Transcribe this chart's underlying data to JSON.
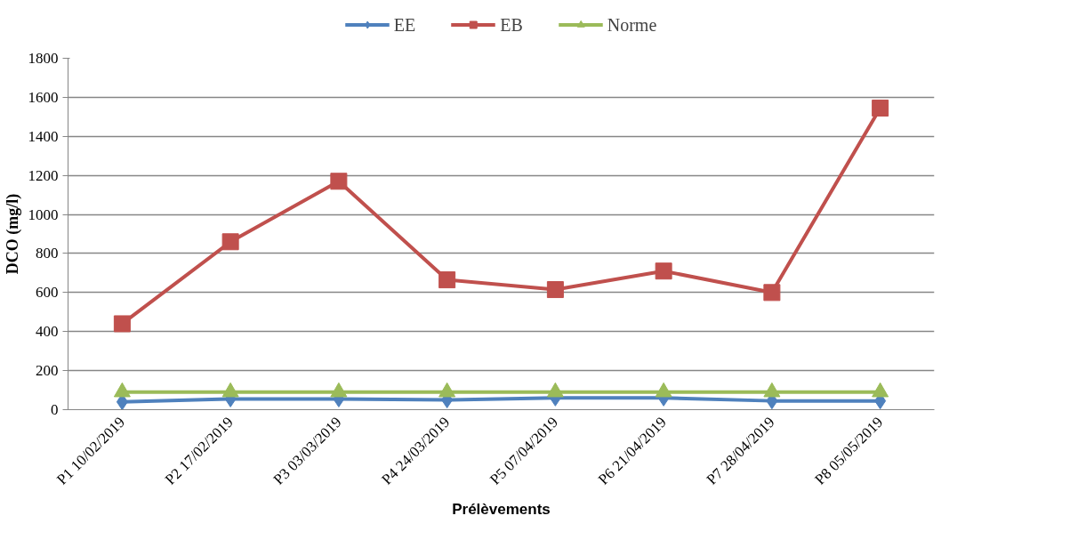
{
  "chart_data": {
    "type": "line",
    "xlabel": "Prélèvements",
    "ylabel": "DCO (mg/l)",
    "categories": [
      "P1 10/02/2019",
      "P2 17/02/2019",
      "P3 03/03/2019",
      "P4 24/03/2019",
      "P5 07/04/2019",
      "P6 21/04/2019",
      "P7 28/04/2019",
      "P8 05/05/2019"
    ],
    "series": [
      {
        "name": "EE",
        "color": "#4f81bd",
        "marker": "diamond",
        "values": [
          40,
          55,
          55,
          50,
          60,
          60,
          45,
          45
        ]
      },
      {
        "name": "EB",
        "color": "#c0504d",
        "marker": "square",
        "values": [
          440,
          860,
          1170,
          665,
          615,
          710,
          600,
          1545
        ]
      },
      {
        "name": "Norme",
        "color": "#9bbb59",
        "marker": "triangle",
        "values": [
          90,
          90,
          90,
          90,
          90,
          90,
          90,
          90
        ]
      }
    ],
    "ylim": [
      0,
      1800
    ],
    "yticks": [
      0,
      200,
      400,
      600,
      800,
      1000,
      1200,
      1400,
      1600,
      1800
    ],
    "grid": "y",
    "legend": "top"
  }
}
